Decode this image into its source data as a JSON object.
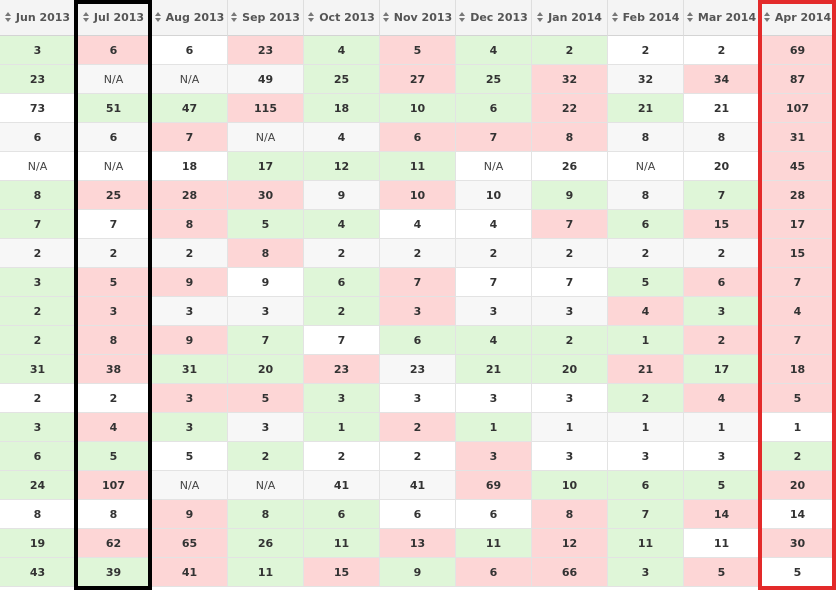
{
  "columns": [
    "Jun 2013",
    "Jul 2013",
    "Aug 2013",
    "Sep 2013",
    "Oct 2013",
    "Nov 2013",
    "Dec 2013",
    "Jan 2014",
    "Feb 2014",
    "Mar 2014",
    "Apr 2014"
  ],
  "sort_icon": "sort-icon",
  "colors": {
    "green": "#dff6d8",
    "red": "#fdd6d6",
    "white": "#ffffff",
    "gray": "#f7f7f7",
    "black_highlight": "#000000",
    "red_highlight": "#e32a2a"
  },
  "highlights": [
    {
      "name": "jul-2013-column-highlight",
      "column": "Jul 2013",
      "color": "#000000"
    },
    {
      "name": "apr-2014-column-highlight",
      "column": "Apr 2014",
      "color": "#e32a2a"
    }
  ],
  "rows": [
    {
      "values": [
        "3",
        "6",
        "6",
        "23",
        "4",
        "5",
        "4",
        "2",
        "2",
        "2",
        "69"
      ],
      "colors": [
        "g",
        "r",
        "w",
        "r",
        "g",
        "r",
        "g",
        "g",
        "w",
        "w",
        "r"
      ]
    },
    {
      "values": [
        "23",
        "N/A",
        "N/A",
        "49",
        "25",
        "27",
        "25",
        "32",
        "32",
        "34",
        "87"
      ],
      "colors": [
        "g",
        "a",
        "a",
        "a",
        "g",
        "r",
        "g",
        "r",
        "a",
        "r",
        "r"
      ]
    },
    {
      "values": [
        "73",
        "51",
        "47",
        "115",
        "18",
        "10",
        "6",
        "22",
        "21",
        "21",
        "107"
      ],
      "colors": [
        "w",
        "g",
        "g",
        "r",
        "g",
        "g",
        "g",
        "r",
        "g",
        "w",
        "r"
      ]
    },
    {
      "values": [
        "6",
        "6",
        "7",
        "N/A",
        "4",
        "6",
        "7",
        "8",
        "8",
        "8",
        "31"
      ],
      "colors": [
        "a",
        "a",
        "r",
        "a",
        "a",
        "r",
        "r",
        "r",
        "a",
        "a",
        "r"
      ]
    },
    {
      "values": [
        "N/A",
        "N/A",
        "18",
        "17",
        "12",
        "11",
        "N/A",
        "26",
        "N/A",
        "20",
        "45"
      ],
      "colors": [
        "w",
        "w",
        "w",
        "g",
        "g",
        "g",
        "w",
        "w",
        "w",
        "w",
        "r"
      ]
    },
    {
      "values": [
        "8",
        "25",
        "28",
        "30",
        "9",
        "10",
        "10",
        "9",
        "8",
        "7",
        "28"
      ],
      "colors": [
        "g",
        "r",
        "r",
        "r",
        "a",
        "r",
        "a",
        "g",
        "a",
        "g",
        "r"
      ]
    },
    {
      "values": [
        "7",
        "7",
        "8",
        "5",
        "4",
        "4",
        "4",
        "7",
        "6",
        "15",
        "17"
      ],
      "colors": [
        "g",
        "w",
        "r",
        "g",
        "g",
        "w",
        "w",
        "r",
        "g",
        "r",
        "r"
      ]
    },
    {
      "values": [
        "2",
        "2",
        "2",
        "8",
        "2",
        "2",
        "2",
        "2",
        "2",
        "2",
        "15"
      ],
      "colors": [
        "a",
        "a",
        "a",
        "r",
        "a",
        "a",
        "a",
        "a",
        "a",
        "a",
        "r"
      ]
    },
    {
      "values": [
        "3",
        "5",
        "9",
        "9",
        "6",
        "7",
        "7",
        "7",
        "5",
        "6",
        "7"
      ],
      "colors": [
        "g",
        "r",
        "r",
        "w",
        "g",
        "r",
        "w",
        "w",
        "g",
        "r",
        "r"
      ]
    },
    {
      "values": [
        "2",
        "3",
        "3",
        "3",
        "2",
        "3",
        "3",
        "3",
        "4",
        "3",
        "4"
      ],
      "colors": [
        "g",
        "r",
        "a",
        "a",
        "g",
        "r",
        "a",
        "a",
        "r",
        "g",
        "r"
      ]
    },
    {
      "values": [
        "2",
        "8",
        "9",
        "7",
        "7",
        "6",
        "4",
        "2",
        "1",
        "2",
        "7"
      ],
      "colors": [
        "g",
        "r",
        "r",
        "g",
        "w",
        "g",
        "g",
        "g",
        "g",
        "r",
        "r"
      ]
    },
    {
      "values": [
        "31",
        "38",
        "31",
        "20",
        "23",
        "23",
        "21",
        "20",
        "21",
        "17",
        "18"
      ],
      "colors": [
        "g",
        "r",
        "g",
        "g",
        "r",
        "a",
        "g",
        "g",
        "r",
        "g",
        "r"
      ]
    },
    {
      "values": [
        "2",
        "2",
        "3",
        "5",
        "3",
        "3",
        "3",
        "3",
        "2",
        "4",
        "5"
      ],
      "colors": [
        "w",
        "w",
        "r",
        "r",
        "g",
        "w",
        "w",
        "w",
        "g",
        "r",
        "r"
      ]
    },
    {
      "values": [
        "3",
        "4",
        "3",
        "3",
        "1",
        "2",
        "1",
        "1",
        "1",
        "1",
        "1"
      ],
      "colors": [
        "g",
        "r",
        "g",
        "a",
        "g",
        "r",
        "g",
        "a",
        "a",
        "a",
        "w"
      ]
    },
    {
      "values": [
        "6",
        "5",
        "5",
        "2",
        "2",
        "2",
        "3",
        "3",
        "3",
        "3",
        "2"
      ],
      "colors": [
        "g",
        "g",
        "w",
        "g",
        "w",
        "w",
        "r",
        "w",
        "w",
        "w",
        "g"
      ]
    },
    {
      "values": [
        "24",
        "107",
        "N/A",
        "N/A",
        "41",
        "41",
        "69",
        "10",
        "6",
        "5",
        "20"
      ],
      "colors": [
        "g",
        "r",
        "a",
        "a",
        "a",
        "a",
        "r",
        "g",
        "g",
        "g",
        "r"
      ]
    },
    {
      "values": [
        "8",
        "8",
        "9",
        "8",
        "6",
        "6",
        "6",
        "8",
        "7",
        "14",
        "14"
      ],
      "colors": [
        "w",
        "w",
        "r",
        "g",
        "g",
        "w",
        "w",
        "r",
        "g",
        "r",
        "w"
      ]
    },
    {
      "values": [
        "19",
        "62",
        "65",
        "26",
        "11",
        "13",
        "11",
        "12",
        "11",
        "11",
        "30"
      ],
      "colors": [
        "g",
        "r",
        "r",
        "g",
        "g",
        "r",
        "g",
        "r",
        "g",
        "w",
        "r"
      ]
    },
    {
      "values": [
        "43",
        "39",
        "41",
        "11",
        "15",
        "9",
        "6",
        "66",
        "3",
        "5",
        "5"
      ],
      "colors": [
        "g",
        "g",
        "r",
        "g",
        "r",
        "g",
        "r",
        "r",
        "g",
        "r",
        "w"
      ]
    }
  ]
}
